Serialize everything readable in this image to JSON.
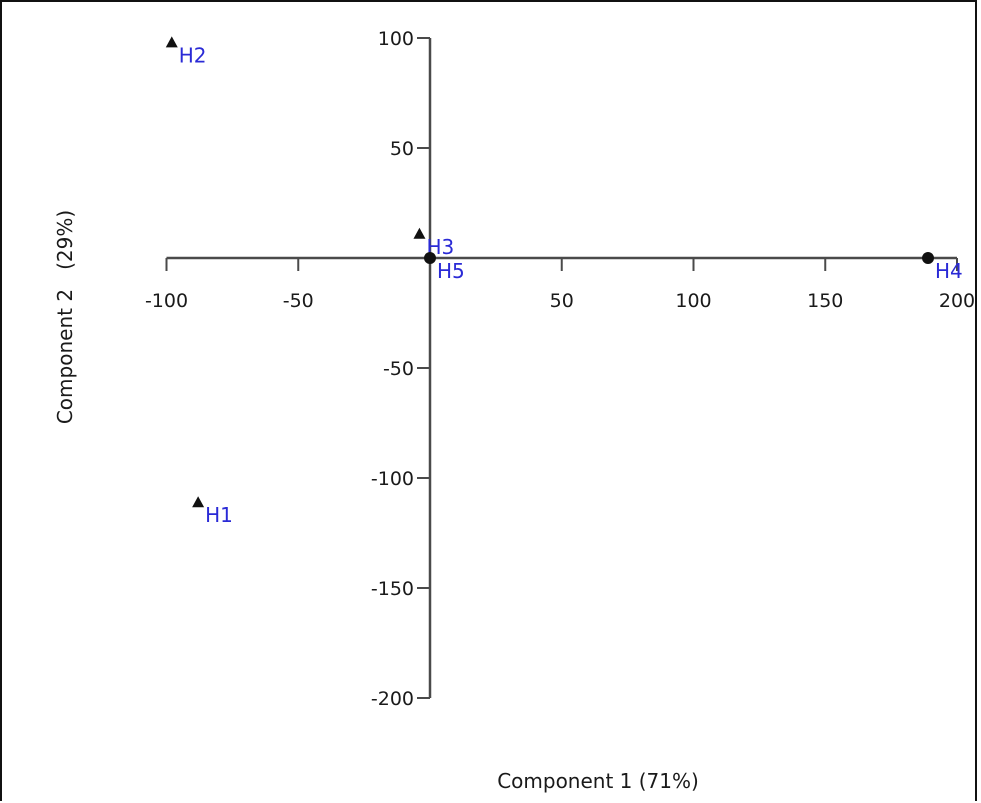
{
  "chart_data": {
    "type": "scatter",
    "xlabel": "Component 1 (71%)",
    "ylabel": "Component 2   (29%)",
    "xlim": [
      -100,
      200
    ],
    "ylim": [
      -200,
      100
    ],
    "x_ticks": [
      -100,
      -50,
      50,
      100,
      150,
      200
    ],
    "y_ticks": [
      100,
      50,
      -50,
      -100,
      -150,
      -200
    ],
    "grid": false,
    "points": [
      {
        "label": "H1",
        "x": -88,
        "y": -111,
        "marker": "triangle"
      },
      {
        "label": "H2",
        "x": -98,
        "y": 98,
        "marker": "triangle"
      },
      {
        "label": "H3",
        "x": -4,
        "y": 11,
        "marker": "triangle"
      },
      {
        "label": "H4",
        "x": 189,
        "y": 0,
        "marker": "circle"
      },
      {
        "label": "H5",
        "x": 0,
        "y": 0,
        "marker": "circle"
      }
    ]
  },
  "colors": {
    "axis": "#4a4a4a",
    "marker": "#111111",
    "label": "#2a2ad6"
  }
}
